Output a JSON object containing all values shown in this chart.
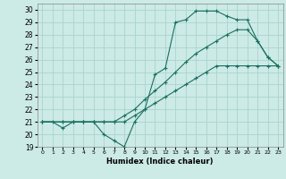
{
  "xlabel": "Humidex (Indice chaleur)",
  "bg_color": "#cceae6",
  "grid_color": "#aad4cf",
  "line_color": "#1a7060",
  "xlim": [
    -0.5,
    23.5
  ],
  "ylim": [
    19,
    30.5
  ],
  "xticks": [
    0,
    1,
    2,
    3,
    4,
    5,
    6,
    7,
    8,
    9,
    10,
    11,
    12,
    13,
    14,
    15,
    16,
    17,
    18,
    19,
    20,
    21,
    22,
    23
  ],
  "yticks": [
    19,
    20,
    21,
    22,
    23,
    24,
    25,
    26,
    27,
    28,
    29,
    30
  ],
  "line1": {
    "x": [
      0,
      1,
      2,
      3,
      4,
      5,
      6,
      7,
      8,
      9,
      10,
      11,
      12,
      13,
      14,
      15,
      16,
      17,
      18,
      19,
      20,
      21,
      22,
      23
    ],
    "y": [
      21,
      21,
      20.5,
      21,
      21,
      21,
      20,
      19.5,
      19,
      21,
      22,
      24.8,
      25.3,
      29,
      29.2,
      29.9,
      29.9,
      29.9,
      29.5,
      29.2,
      29.2,
      27.5,
      26.2,
      25.5
    ]
  },
  "line2": {
    "x": [
      0,
      2,
      3,
      4,
      5,
      6,
      7,
      8,
      9,
      10,
      11,
      12,
      13,
      14,
      15,
      16,
      17,
      18,
      19,
      20,
      21,
      22,
      23
    ],
    "y": [
      21,
      21,
      21,
      21,
      21,
      21,
      21,
      21.5,
      22,
      22.8,
      23.5,
      24.2,
      25,
      25.8,
      26.5,
      27,
      27.5,
      28,
      28.4,
      28.4,
      27.5,
      26.2,
      25.5
    ]
  },
  "line3": {
    "x": [
      0,
      2,
      3,
      4,
      5,
      6,
      7,
      8,
      9,
      10,
      11,
      12,
      13,
      14,
      15,
      16,
      17,
      18,
      19,
      20,
      21,
      22,
      23
    ],
    "y": [
      21,
      21,
      21,
      21,
      21,
      21,
      21,
      21,
      21.5,
      22,
      22.5,
      23,
      23.5,
      24,
      24.5,
      25,
      25.5,
      25.5,
      25.5,
      25.5,
      25.5,
      25.5,
      25.5
    ]
  }
}
